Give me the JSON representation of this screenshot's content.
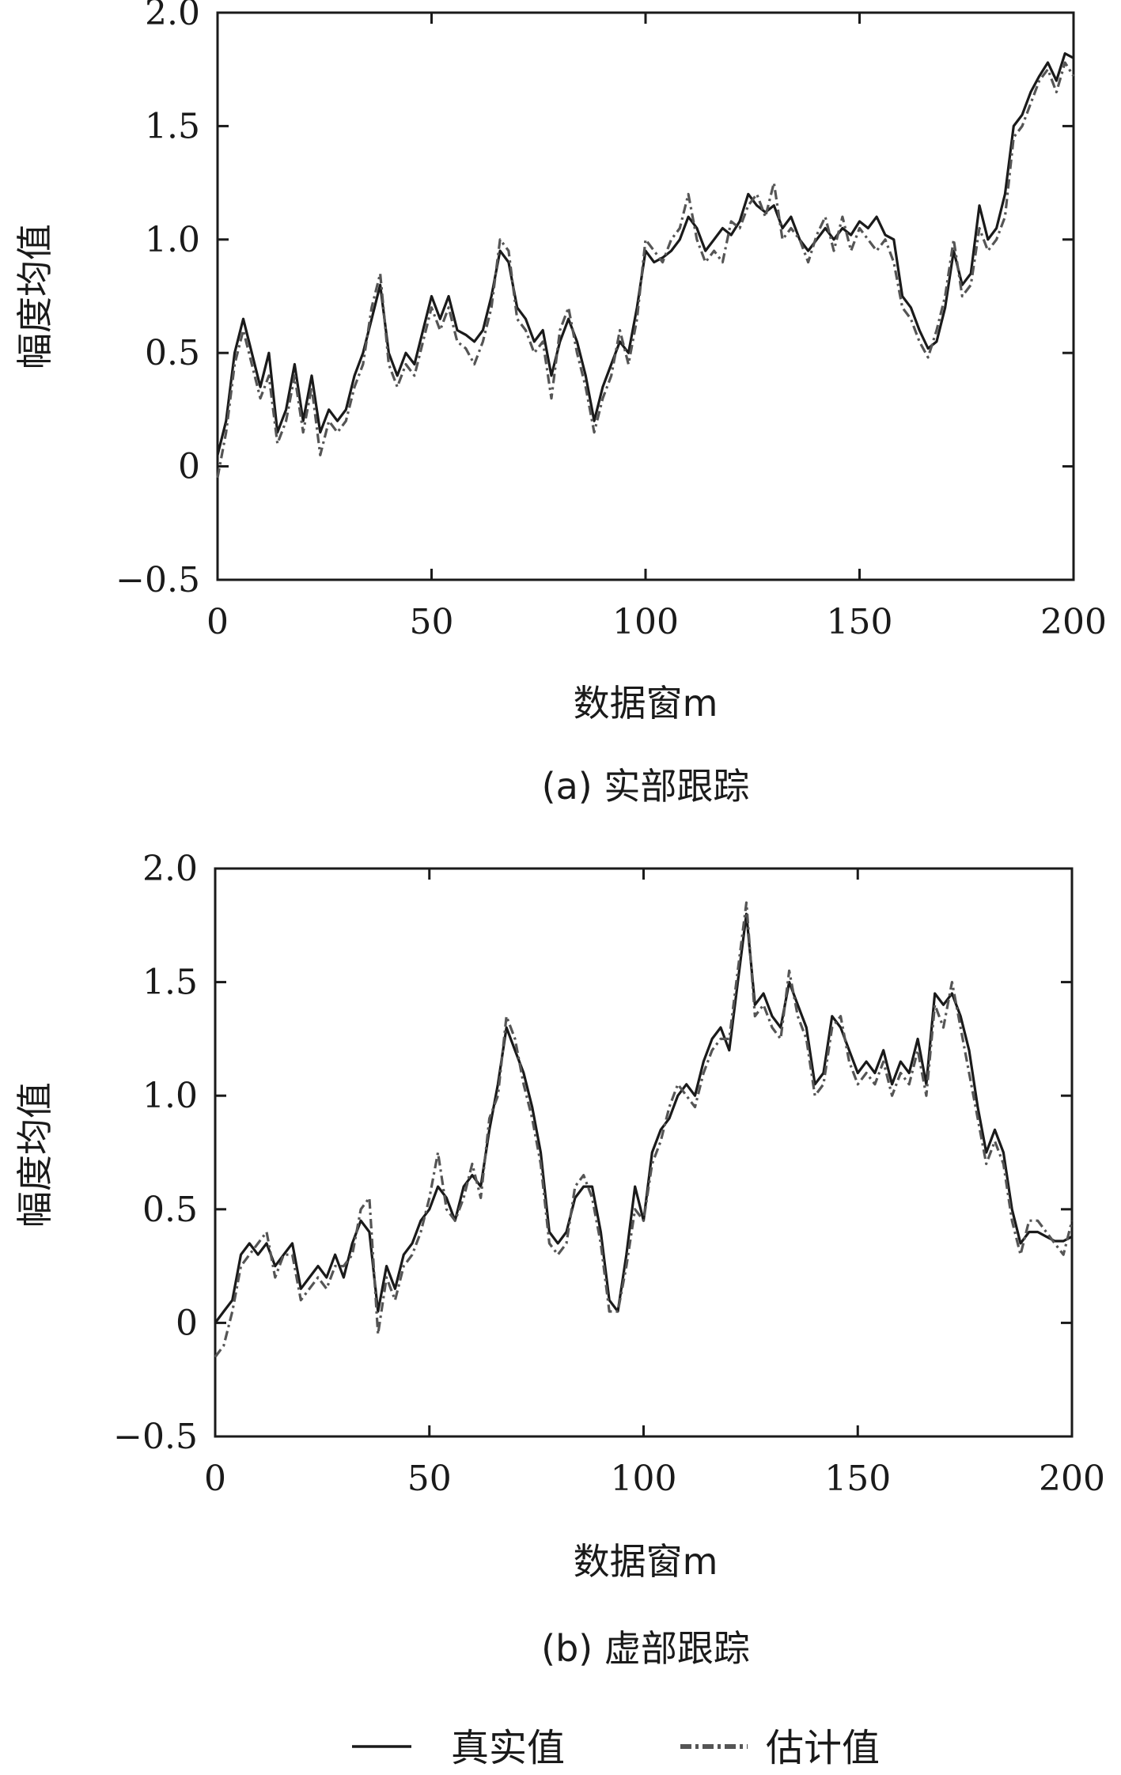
{
  "legend": {
    "true_label": "真实值",
    "est_label": "估计值"
  },
  "colors": {
    "true": "#1a1a1a",
    "estimate": "#555555"
  },
  "chart_data": [
    {
      "type": "line",
      "caption": "(a) 实部跟踪",
      "xlabel": "数据窗m",
      "ylabel": "幅度均值",
      "xlim": [
        0,
        200
      ],
      "ylim": [
        -0.5,
        2.0
      ],
      "x_ticks": [
        0,
        50,
        100,
        150,
        200
      ],
      "y_ticks": [
        -0.5,
        0,
        0.5,
        1.0,
        1.5,
        2.0
      ],
      "x_tick_labels": [
        "0",
        "50",
        "100",
        "150",
        "200"
      ],
      "y_tick_labels": [
        "−0.5",
        "0",
        "0.5",
        "1.0",
        "1.5",
        "2.0"
      ],
      "x": [
        0,
        2,
        4,
        6,
        8,
        10,
        12,
        14,
        16,
        18,
        20,
        22,
        24,
        26,
        28,
        30,
        32,
        34,
        36,
        38,
        40,
        42,
        44,
        46,
        48,
        50,
        52,
        54,
        56,
        58,
        60,
        62,
        64,
        66,
        68,
        70,
        72,
        74,
        76,
        78,
        80,
        82,
        84,
        86,
        88,
        90,
        92,
        94,
        96,
        98,
        100,
        102,
        104,
        106,
        108,
        110,
        112,
        114,
        116,
        118,
        120,
        122,
        124,
        126,
        128,
        130,
        132,
        134,
        136,
        138,
        140,
        142,
        144,
        146,
        148,
        150,
        152,
        154,
        156,
        158,
        160,
        162,
        164,
        166,
        168,
        170,
        172,
        174,
        176,
        178,
        180,
        182,
        184,
        186,
        188,
        190,
        192,
        194,
        196,
        198,
        200
      ],
      "series": [
        {
          "name": "真实值",
          "style": "solid",
          "values": [
            0.05,
            0.2,
            0.5,
            0.65,
            0.5,
            0.35,
            0.5,
            0.15,
            0.25,
            0.45,
            0.2,
            0.4,
            0.15,
            0.25,
            0.2,
            0.25,
            0.4,
            0.5,
            0.65,
            0.8,
            0.5,
            0.4,
            0.5,
            0.45,
            0.6,
            0.75,
            0.65,
            0.75,
            0.6,
            0.58,
            0.55,
            0.6,
            0.75,
            0.95,
            0.9,
            0.7,
            0.65,
            0.55,
            0.6,
            0.4,
            0.55,
            0.65,
            0.55,
            0.4,
            0.2,
            0.35,
            0.45,
            0.55,
            0.5,
            0.7,
            0.95,
            0.9,
            0.92,
            0.95,
            1.0,
            1.1,
            1.05,
            0.95,
            1.0,
            1.05,
            1.02,
            1.08,
            1.2,
            1.15,
            1.12,
            1.15,
            1.05,
            1.1,
            1.0,
            0.95,
            1.0,
            1.05,
            1.0,
            1.05,
            1.02,
            1.08,
            1.05,
            1.1,
            1.02,
            1.0,
            0.75,
            0.7,
            0.6,
            0.52,
            0.55,
            0.7,
            0.95,
            0.8,
            0.85,
            1.15,
            1.0,
            1.05,
            1.2,
            1.5,
            1.55,
            1.65,
            1.72,
            1.78,
            1.7,
            1.82,
            1.8
          ]
        },
        {
          "name": "估计值",
          "style": "dashdot",
          "values": [
            -0.05,
            0.15,
            0.45,
            0.6,
            0.45,
            0.3,
            0.4,
            0.1,
            0.2,
            0.4,
            0.15,
            0.35,
            0.05,
            0.2,
            0.15,
            0.2,
            0.35,
            0.45,
            0.7,
            0.85,
            0.45,
            0.35,
            0.45,
            0.4,
            0.55,
            0.7,
            0.6,
            0.7,
            0.55,
            0.52,
            0.45,
            0.55,
            0.7,
            1.0,
            0.95,
            0.65,
            0.6,
            0.5,
            0.55,
            0.3,
            0.6,
            0.7,
            0.5,
            0.35,
            0.15,
            0.3,
            0.4,
            0.6,
            0.45,
            0.65,
            1.0,
            0.95,
            0.9,
            1.0,
            1.05,
            1.2,
            1.0,
            0.9,
            0.95,
            0.9,
            1.08,
            1.05,
            1.15,
            1.2,
            1.1,
            1.25,
            1.0,
            1.05,
            1.0,
            0.9,
            1.02,
            1.1,
            0.95,
            1.1,
            0.95,
            1.05,
            1.0,
            0.95,
            1.0,
            0.9,
            0.7,
            0.65,
            0.55,
            0.48,
            0.6,
            0.75,
            1.0,
            0.75,
            0.8,
            1.05,
            0.95,
            1.0,
            1.1,
            1.45,
            1.5,
            1.6,
            1.7,
            1.75,
            1.65,
            1.78,
            1.72
          ]
        }
      ]
    },
    {
      "type": "line",
      "caption": "(b) 虚部跟踪",
      "xlabel": "数据窗m",
      "ylabel": "幅度均值",
      "xlim": [
        0,
        200
      ],
      "ylim": [
        -0.5,
        2.0
      ],
      "x_ticks": [
        0,
        50,
        100,
        150,
        200
      ],
      "y_ticks": [
        -0.5,
        0,
        0.5,
        1.0,
        1.5,
        2.0
      ],
      "x_tick_labels": [
        "0",
        "50",
        "100",
        "150",
        "200"
      ],
      "y_tick_labels": [
        "−0.5",
        "0",
        "0.5",
        "1.0",
        "1.5",
        "2.0"
      ],
      "x": [
        0,
        2,
        4,
        6,
        8,
        10,
        12,
        14,
        16,
        18,
        20,
        22,
        24,
        26,
        28,
        30,
        32,
        34,
        36,
        38,
        40,
        42,
        44,
        46,
        48,
        50,
        52,
        54,
        56,
        58,
        60,
        62,
        64,
        66,
        68,
        70,
        72,
        74,
        76,
        78,
        80,
        82,
        84,
        86,
        88,
        90,
        92,
        94,
        96,
        98,
        100,
        102,
        104,
        106,
        108,
        110,
        112,
        114,
        116,
        118,
        120,
        122,
        124,
        126,
        128,
        130,
        132,
        134,
        136,
        138,
        140,
        142,
        144,
        146,
        148,
        150,
        152,
        154,
        156,
        158,
        160,
        162,
        164,
        166,
        168,
        170,
        172,
        174,
        176,
        178,
        180,
        182,
        184,
        186,
        188,
        190,
        192,
        194,
        196,
        198,
        200
      ],
      "series": [
        {
          "name": "真实值",
          "style": "solid",
          "values": [
            0.0,
            0.05,
            0.1,
            0.3,
            0.35,
            0.3,
            0.35,
            0.25,
            0.3,
            0.35,
            0.15,
            0.2,
            0.25,
            0.2,
            0.3,
            0.2,
            0.35,
            0.45,
            0.4,
            0.05,
            0.25,
            0.15,
            0.3,
            0.35,
            0.45,
            0.5,
            0.6,
            0.55,
            0.45,
            0.6,
            0.65,
            0.6,
            0.85,
            1.05,
            1.3,
            1.2,
            1.1,
            0.95,
            0.75,
            0.4,
            0.35,
            0.4,
            0.55,
            0.6,
            0.6,
            0.4,
            0.1,
            0.05,
            0.3,
            0.6,
            0.45,
            0.75,
            0.85,
            0.9,
            1.0,
            1.05,
            1.0,
            1.15,
            1.25,
            1.3,
            1.2,
            1.5,
            1.8,
            1.4,
            1.45,
            1.35,
            1.3,
            1.5,
            1.4,
            1.3,
            1.05,
            1.1,
            1.35,
            1.3,
            1.2,
            1.1,
            1.15,
            1.1,
            1.2,
            1.05,
            1.15,
            1.1,
            1.25,
            1.05,
            1.45,
            1.4,
            1.45,
            1.35,
            1.2,
            0.95,
            0.75,
            0.85,
            0.75,
            0.5,
            0.35,
            0.4,
            0.4,
            0.38,
            0.36,
            0.36,
            0.38
          ]
        },
        {
          "name": "估计值",
          "style": "dashdot",
          "values": [
            -0.15,
            -0.1,
            0.05,
            0.25,
            0.3,
            0.35,
            0.4,
            0.2,
            0.3,
            0.3,
            0.1,
            0.15,
            0.2,
            0.15,
            0.25,
            0.25,
            0.3,
            0.5,
            0.55,
            -0.05,
            0.2,
            0.1,
            0.25,
            0.3,
            0.4,
            0.55,
            0.75,
            0.5,
            0.45,
            0.55,
            0.7,
            0.55,
            0.9,
            1.0,
            1.35,
            1.25,
            1.05,
            0.9,
            0.7,
            0.35,
            0.3,
            0.35,
            0.6,
            0.65,
            0.55,
            0.35,
            0.05,
            0.05,
            0.25,
            0.5,
            0.45,
            0.7,
            0.8,
            0.95,
            1.05,
            1.0,
            0.95,
            1.1,
            1.2,
            1.25,
            1.25,
            1.55,
            1.85,
            1.35,
            1.4,
            1.3,
            1.25,
            1.55,
            1.35,
            1.25,
            1.0,
            1.05,
            1.3,
            1.35,
            1.15,
            1.05,
            1.1,
            1.05,
            1.15,
            1.0,
            1.1,
            1.05,
            1.2,
            1.0,
            1.4,
            1.3,
            1.5,
            1.3,
            1.1,
            0.9,
            0.7,
            0.8,
            0.7,
            0.45,
            0.3,
            0.45,
            0.45,
            0.4,
            0.35,
            0.3,
            0.45
          ]
        }
      ]
    }
  ]
}
